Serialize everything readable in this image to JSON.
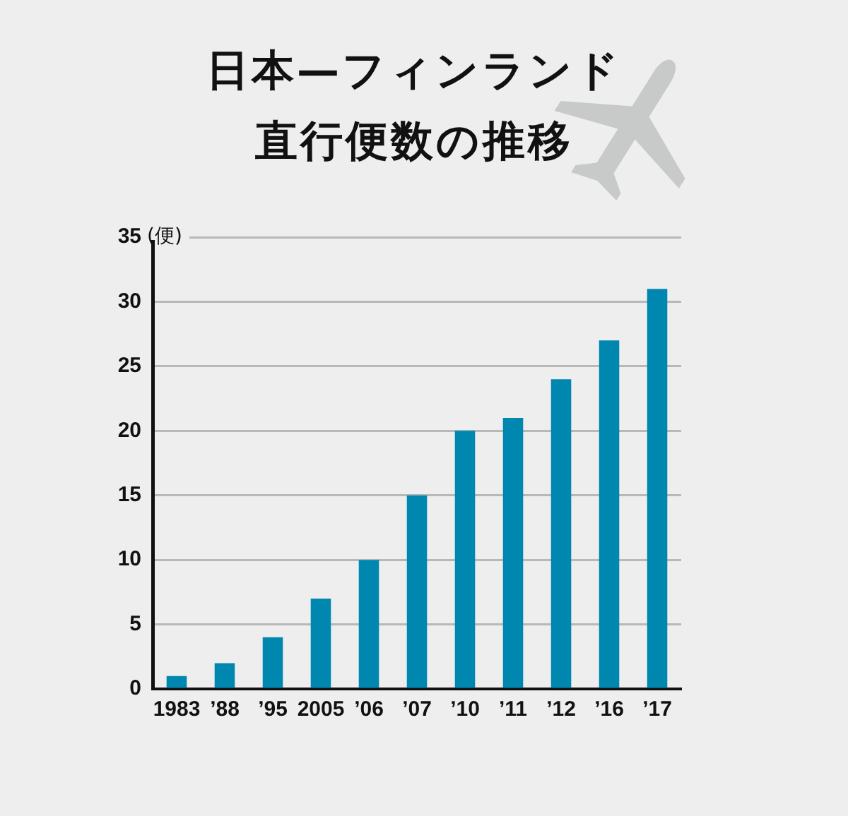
{
  "chart_data": {
    "type": "bar",
    "title": "日本—フィンランド直行便数の推移",
    "ylabel": "(便)",
    "categories": [
      "1983",
      "’88",
      "’95",
      "2005",
      "’06",
      "’07",
      "’10",
      "’11",
      "’12",
      "’16",
      "’17"
    ],
    "values": [
      1,
      2,
      4,
      7,
      10,
      15,
      20,
      21,
      24,
      27,
      31
    ],
    "color": "#0087b0",
    "ylim": [
      0,
      35
    ],
    "yticks": [
      0,
      5,
      10,
      15,
      20,
      25,
      30,
      35
    ],
    "grid": "y"
  }
}
